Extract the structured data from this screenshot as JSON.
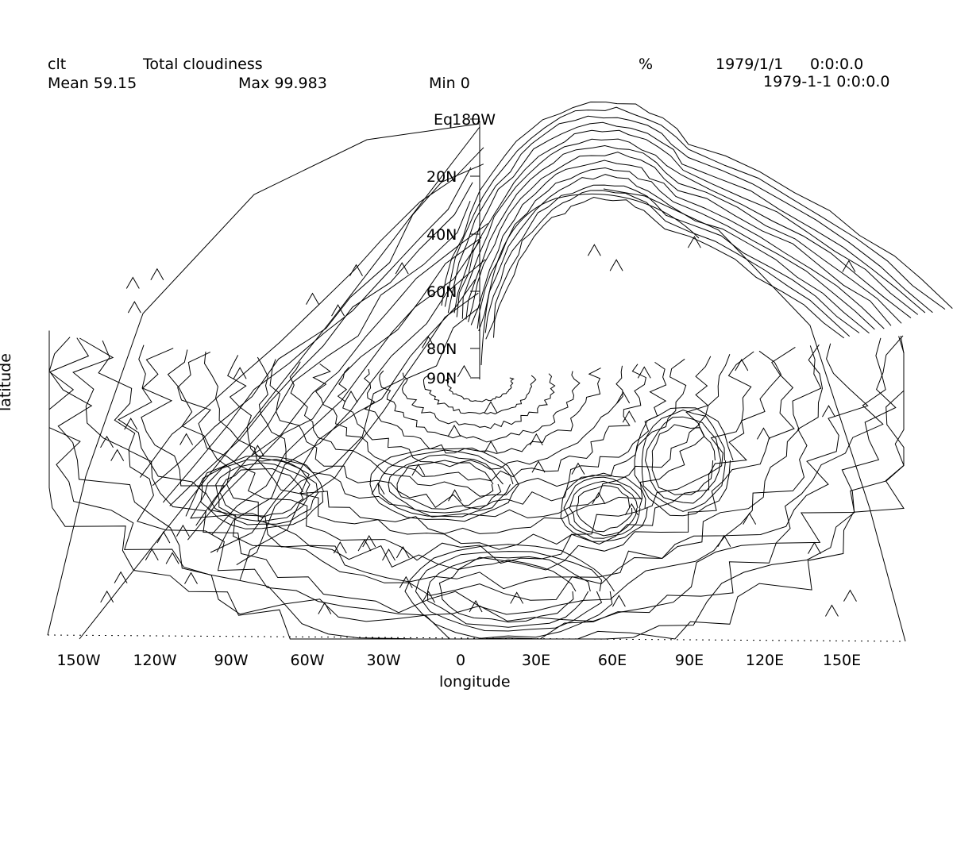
{
  "header": {
    "variable": "clt",
    "long_name": "Total cloudiness",
    "units": "%",
    "date": "1979/1/1",
    "time": "0:0:0.0",
    "datetime": "1979-1-1 0:0:0.0",
    "mean": "Mean 59.15",
    "max": "Max 99.983",
    "min": "Min 0"
  },
  "axes": {
    "xlabel": "longitude",
    "ylabel": "latitude",
    "lon_ticks": [
      "150W",
      "120W",
      "90W",
      "60W",
      "30W",
      "0",
      "30E",
      "60E",
      "90E",
      "120E",
      "150E"
    ],
    "lat_ticks": [
      "180W",
      "20N",
      "40N",
      "60N",
      "80N",
      "90N"
    ],
    "lat_top_overlap": "Eq"
  },
  "colors": {
    "line": "#000000",
    "background": "#ffffff"
  }
}
